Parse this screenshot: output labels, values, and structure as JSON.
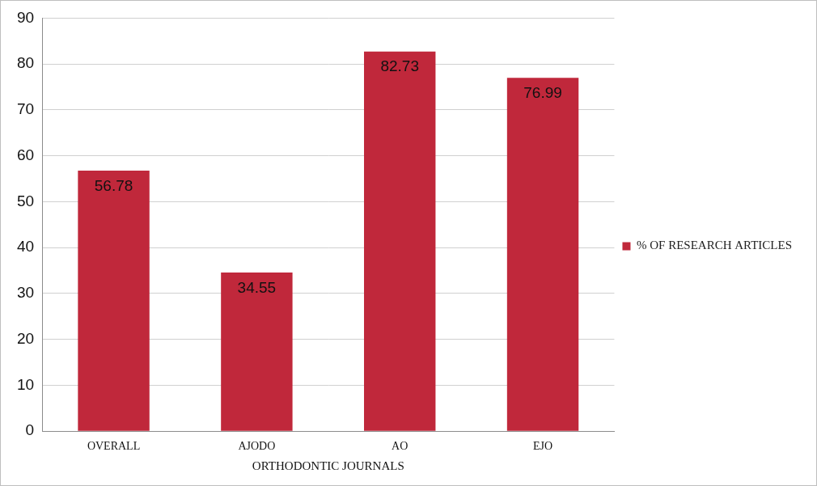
{
  "chart_data": {
    "type": "bar",
    "categories": [
      "OVERALL",
      "AJODO",
      "AO",
      "EJO"
    ],
    "series": [
      {
        "name": "% OF RESEARCH ARTICLES",
        "color": "#c0283b",
        "values": [
          56.78,
          34.55,
          82.73,
          76.99
        ]
      }
    ],
    "xlabel": "ORTHODONTIC JOURNALS",
    "ylim": [
      0,
      90
    ],
    "yticks": [
      0,
      10,
      20,
      30,
      40,
      50,
      60,
      70,
      80,
      90
    ],
    "grid": true,
    "legend": "right",
    "data_labels": true
  }
}
